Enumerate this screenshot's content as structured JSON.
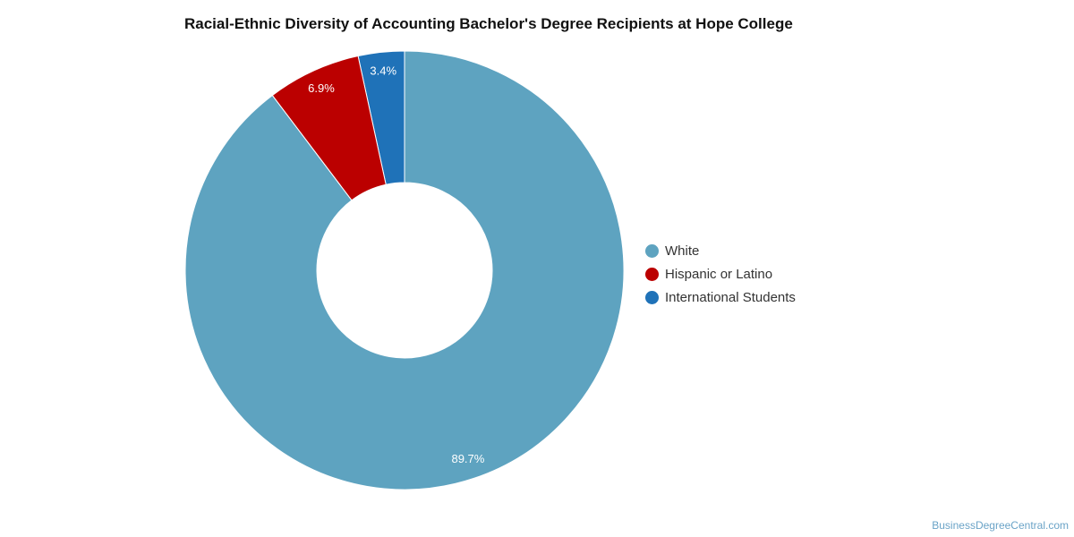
{
  "chart_data": {
    "type": "pie",
    "variant": "donut",
    "title": "Racial-Ethnic Diversity of Accounting Bachelor's Degree Recipients at Hope College",
    "slices": [
      {
        "label": "International Students",
        "value": 3.4,
        "display": "3.4%",
        "color": "#1f72b8"
      },
      {
        "label": "Hispanic or Latino",
        "value": 6.9,
        "display": "6.9%",
        "color": "#bb0000"
      },
      {
        "label": "White",
        "value": 89.7,
        "display": "89.7%",
        "color": "#5ea3c0"
      }
    ],
    "legend": {
      "placement": "right",
      "entries": [
        {
          "label": "White",
          "color": "#5ea3c0"
        },
        {
          "label": "Hispanic or Latino",
          "color": "#bb0000"
        },
        {
          "label": "International Students",
          "color": "#1f72b8"
        }
      ]
    }
  },
  "credit": "BusinessDegreeCentral.com"
}
